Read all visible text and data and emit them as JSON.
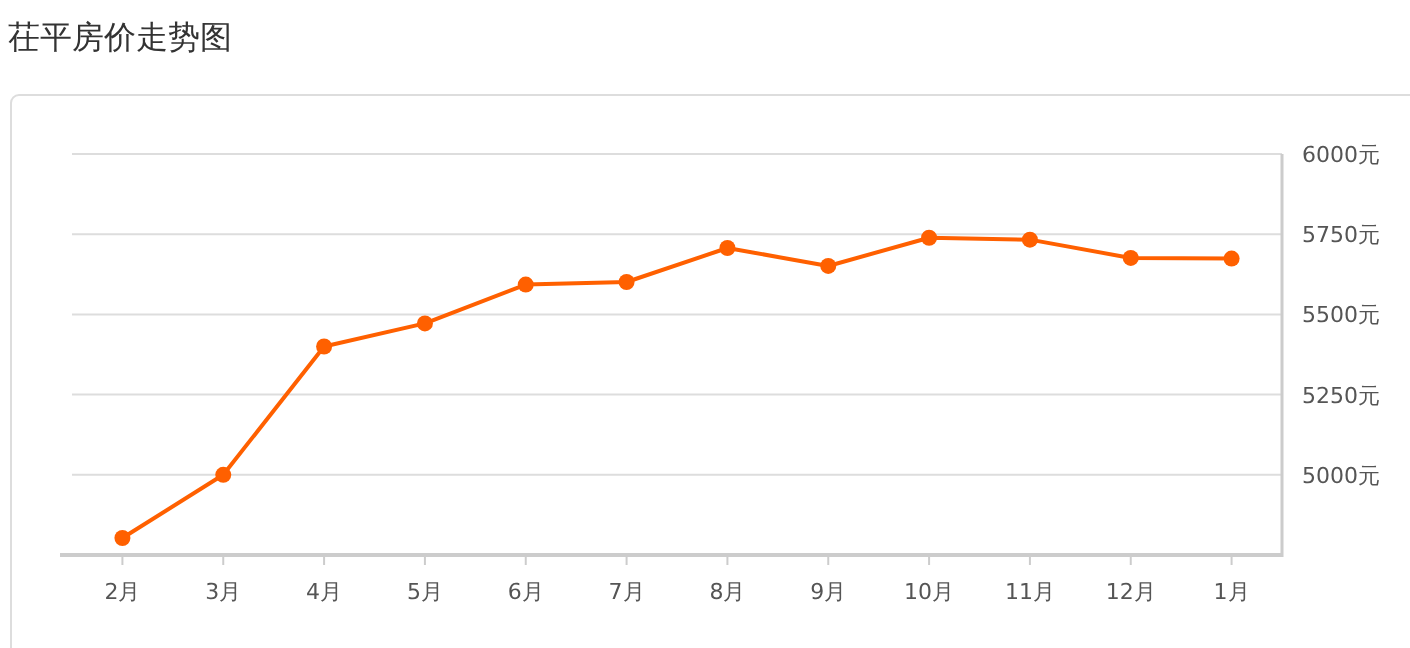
{
  "chart_data": {
    "type": "line",
    "title": "茌平房价走势图",
    "categories": [
      "2月",
      "3月",
      "4月",
      "5月",
      "6月",
      "7月",
      "8月",
      "9月",
      "10月",
      "11月",
      "12月",
      "1月"
    ],
    "series": [
      {
        "color": "#ff6000",
        "values": [
          4803,
          5000,
          5400,
          5472,
          5593,
          5601,
          5707,
          5651,
          5739,
          5733,
          5676,
          5674
        ]
      }
    ],
    "ylim": [
      4750,
      6000
    ],
    "yticks": [
      {
        "value": 5000,
        "label": "5000元"
      },
      {
        "value": 5250,
        "label": "5250元"
      },
      {
        "value": 5500,
        "label": "5500元"
      },
      {
        "value": 5750,
        "label": "5750元"
      },
      {
        "value": 6000,
        "label": "6000元"
      }
    ],
    "grid": "y",
    "marker": "circle",
    "line_style": "solid"
  }
}
